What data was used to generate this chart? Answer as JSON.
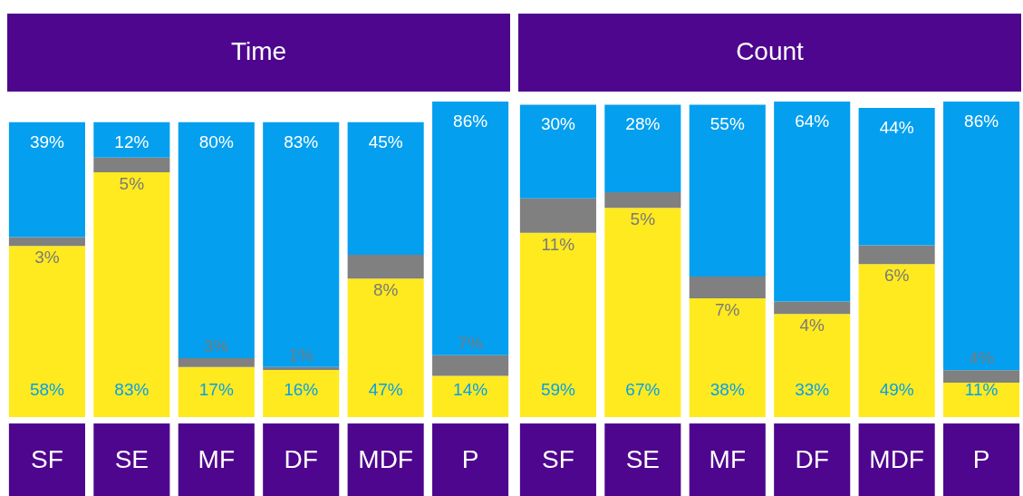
{
  "chart_data": [
    {
      "type": "bar",
      "title": "Time",
      "categories": [
        "SF",
        "SE",
        "MF",
        "DF",
        "MDF",
        "P"
      ],
      "stacked": true,
      "series": [
        {
          "color": "#ffea1f",
          "values": [
            58,
            83,
            17,
            16,
            47,
            14
          ],
          "value_labels": [
            "58%",
            "83%",
            "17%",
            "16%",
            "47%",
            "14%"
          ]
        },
        {
          "color": "#808080",
          "values": [
            3,
            5,
            3,
            1,
            8,
            7
          ],
          "value_labels": [
            "3%",
            "5%",
            "3%",
            "1%",
            "8%",
            "7%"
          ]
        },
        {
          "color": "#049fee",
          "values": [
            39,
            12,
            80,
            83,
            45,
            86
          ],
          "value_labels": [
            "39%",
            "12%",
            "80%",
            "83%",
            "45%",
            "86%"
          ]
        }
      ]
    },
    {
      "type": "bar",
      "title": "Count",
      "categories": [
        "SF",
        "SE",
        "MF",
        "DF",
        "MDF",
        "P"
      ],
      "stacked": true,
      "series": [
        {
          "color": "#ffea1f",
          "values": [
            59,
            67,
            38,
            33,
            49,
            11
          ],
          "value_labels": [
            "59%",
            "67%",
            "38%",
            "33%",
            "49%",
            "11%"
          ]
        },
        {
          "color": "#808080",
          "values": [
            11,
            5,
            7,
            4,
            6,
            4
          ],
          "value_labels": [
            "11%",
            "5%",
            "7%",
            "4%",
            "6%",
            "4%"
          ]
        },
        {
          "color": "#049fee",
          "values": [
            30,
            28,
            55,
            64,
            44,
            86
          ],
          "value_labels": [
            "30%",
            "28%",
            "55%",
            "64%",
            "44%",
            "86%"
          ]
        }
      ]
    }
  ]
}
